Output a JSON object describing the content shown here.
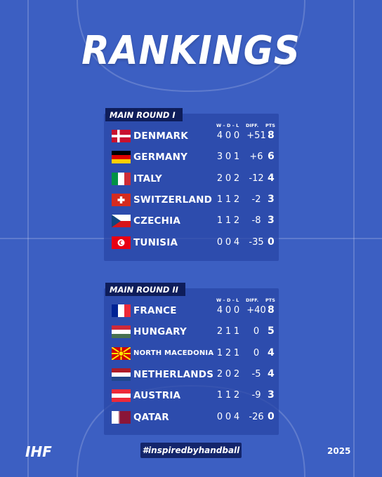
{
  "title": "RANKINGS",
  "groups": [
    {
      "name": "MAIN ROUND I",
      "headers": [
        "W – D – L",
        "DIFF.",
        "PTS"
      ],
      "rows": [
        {
          "team": "DENMARK",
          "w": "4",
          "d": "0",
          "l": "0",
          "diff": "+51",
          "pts": "8"
        },
        {
          "team": "GERMANY",
          "w": "3",
          "d": "0",
          "l": "1",
          "diff": "+6",
          "pts": "6"
        },
        {
          "team": "ITALY",
          "w": "2",
          "d": "0",
          "l": "2",
          "diff": "-12",
          "pts": "4"
        },
        {
          "team": "SWITZERLAND",
          "w": "1",
          "d": "1",
          "l": "2",
          "diff": "-2",
          "pts": "3"
        },
        {
          "team": "CZECHIA",
          "w": "1",
          "d": "1",
          "l": "2",
          "diff": "-8",
          "pts": "3"
        },
        {
          "team": "TUNISIA",
          "w": "0",
          "d": "0",
          "l": "4",
          "diff": "-35",
          "pts": "0"
        }
      ]
    },
    {
      "name": "MAIN ROUND II",
      "headers": [
        "W – D – L",
        "DIFF.",
        "PTS"
      ],
      "rows": [
        {
          "team": "FRANCE",
          "w": "4",
          "d": "0",
          "l": "0",
          "diff": "+40",
          "pts": "8"
        },
        {
          "team": "HUNGARY",
          "w": "2",
          "d": "1",
          "l": "1",
          "diff": "0",
          "pts": "5"
        },
        {
          "team": "NORTH MACEDONIA",
          "w": "1",
          "d": "2",
          "l": "1",
          "diff": "0",
          "pts": "4"
        },
        {
          "team": "NETHERLANDS",
          "w": "2",
          "d": "0",
          "l": "2",
          "diff": "-5",
          "pts": "4"
        },
        {
          "team": "AUSTRIA",
          "w": "1",
          "d": "1",
          "l": "2",
          "diff": "-9",
          "pts": "3"
        },
        {
          "team": "QATAR",
          "w": "0",
          "d": "0",
          "l": "4",
          "diff": "-26",
          "pts": "0"
        }
      ]
    }
  ],
  "hashtag": "#inspiredbyhandball",
  "logos": {
    "left": "IHF",
    "right": "2025"
  }
}
